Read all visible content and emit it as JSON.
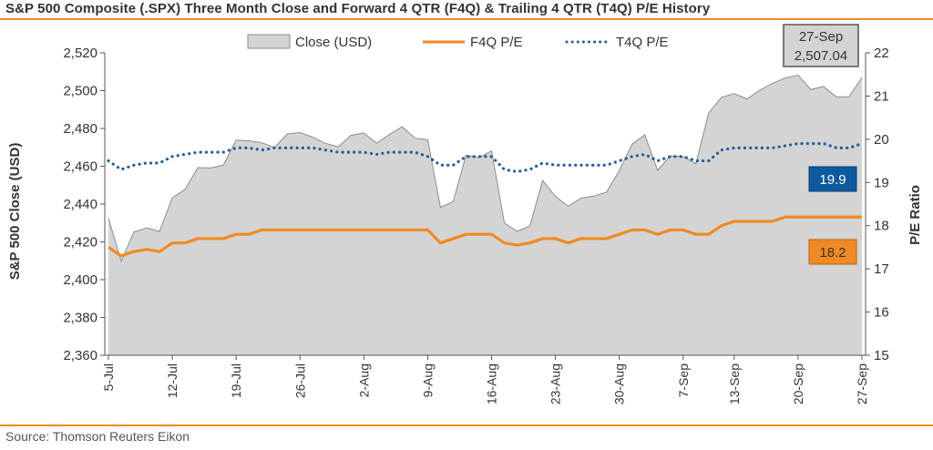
{
  "title": "S&P 500 Composite (.SPX) Three Month Close and Forward 4 QTR (F4Q) & Trailing 4 QTR (T4Q) P/E History",
  "source": "Source: Thomson Reuters Eikon",
  "colors": {
    "accent_orange": "#f08a24",
    "close_fill": "#d4d4d4",
    "close_stroke": "#8c8c8c",
    "f4q_line": "#f08a24",
    "t4q_line": "#1f5f9c",
    "t4q_badge": "#0f5a9e",
    "f4q_badge": "#f08a24"
  },
  "chart_data": {
    "type": "area",
    "title": "S&P 500 Composite (.SPX) Three Month Close and Forward 4 QTR (F4Q) & Trailing 4 QTR (T4Q) P/E History",
    "ylabel": "S&P 500 Close (USD)",
    "y2label": "P/E Ratio",
    "ylim": [
      2360,
      2520
    ],
    "y2lim": [
      15,
      22
    ],
    "yticks": [
      "2,360",
      "2,380",
      "2,400",
      "2,420",
      "2,440",
      "2,460",
      "2,480",
      "2,500",
      "2,520"
    ],
    "y2ticks": [
      "15",
      "16",
      "17",
      "18",
      "19",
      "20",
      "21",
      "22"
    ],
    "xticks": [
      "5-Jul",
      "12-Jul",
      "19-Jul",
      "26-Jul",
      "2-Aug",
      "9-Aug",
      "16-Aug",
      "23-Aug",
      "30-Aug",
      "7-Sep",
      "13-Sep",
      "20-Sep",
      "27-Sep"
    ],
    "legend": {
      "placement": "top-center",
      "entries": [
        "Close (USD)",
        "F4Q P/E",
        "T4Q P/E"
      ]
    },
    "grid": false,
    "x": [
      "5-Jul",
      "6-Jul",
      "7-Jul",
      "10-Jul",
      "11-Jul",
      "12-Jul",
      "13-Jul",
      "14-Jul",
      "17-Jul",
      "18-Jul",
      "19-Jul",
      "20-Jul",
      "21-Jul",
      "24-Jul",
      "25-Jul",
      "26-Jul",
      "27-Jul",
      "28-Jul",
      "31-Jul",
      "1-Aug",
      "2-Aug",
      "3-Aug",
      "4-Aug",
      "7-Aug",
      "8-Aug",
      "9-Aug",
      "10-Aug",
      "11-Aug",
      "14-Aug",
      "15-Aug",
      "16-Aug",
      "17-Aug",
      "18-Aug",
      "21-Aug",
      "22-Aug",
      "23-Aug",
      "24-Aug",
      "25-Aug",
      "28-Aug",
      "29-Aug",
      "30-Aug",
      "31-Aug",
      "1-Sep",
      "5-Sep",
      "6-Sep",
      "7-Sep",
      "8-Sep",
      "11-Sep",
      "12-Sep",
      "13-Sep",
      "14-Sep",
      "15-Sep",
      "18-Sep",
      "19-Sep",
      "20-Sep",
      "21-Sep",
      "22-Sep",
      "25-Sep",
      "26-Sep",
      "27-Sep"
    ],
    "series": [
      {
        "name": "Close (USD)",
        "axis": "left",
        "values": [
          2432.5,
          2409.8,
          2425.2,
          2427.4,
          2425.5,
          2443.3,
          2447.8,
          2459.3,
          2459.1,
          2460.6,
          2473.8,
          2473.5,
          2472.5,
          2469.9,
          2477.1,
          2477.8,
          2475.4,
          2472.1,
          2470.3,
          2476.4,
          2477.6,
          2472.2,
          2476.8,
          2480.9,
          2474.9,
          2474.0,
          2438.2,
          2441.3,
          2465.8,
          2464.6,
          2468.1,
          2430.0,
          2425.6,
          2428.4,
          2452.5,
          2444.0,
          2438.9,
          2443.1,
          2444.2,
          2446.3,
          2457.6,
          2471.7,
          2476.6,
          2457.9,
          2465.5,
          2465.1,
          2461.4,
          2488.1,
          2496.5,
          2498.4,
          2495.6,
          2500.2,
          2503.9,
          2506.7,
          2508.2,
          2500.6,
          2502.2,
          2496.7,
          2496.8,
          2507.0
        ]
      },
      {
        "name": "F4Q P/E",
        "axis": "right",
        "values": [
          17.5,
          17.3,
          17.4,
          17.45,
          17.4,
          17.6,
          17.6,
          17.7,
          17.7,
          17.7,
          17.8,
          17.8,
          17.9,
          17.9,
          17.9,
          17.9,
          17.9,
          17.9,
          17.9,
          17.9,
          17.9,
          17.9,
          17.9,
          17.9,
          17.9,
          17.9,
          17.6,
          17.7,
          17.8,
          17.8,
          17.8,
          17.6,
          17.55,
          17.6,
          17.7,
          17.7,
          17.6,
          17.7,
          17.7,
          17.7,
          17.8,
          17.9,
          17.9,
          17.8,
          17.9,
          17.9,
          17.8,
          17.8,
          18.0,
          18.1,
          18.1,
          18.1,
          18.1,
          18.2,
          18.2,
          18.2,
          18.2,
          18.2,
          18.2,
          18.2
        ]
      },
      {
        "name": "T4Q P/E",
        "axis": "right",
        "values": [
          19.5,
          19.3,
          19.4,
          19.45,
          19.45,
          19.6,
          19.65,
          19.7,
          19.7,
          19.7,
          19.8,
          19.8,
          19.75,
          19.8,
          19.8,
          19.8,
          19.8,
          19.75,
          19.7,
          19.7,
          19.7,
          19.65,
          19.7,
          19.7,
          19.7,
          19.6,
          19.4,
          19.4,
          19.6,
          19.6,
          19.6,
          19.3,
          19.25,
          19.3,
          19.45,
          19.4,
          19.4,
          19.4,
          19.4,
          19.4,
          19.5,
          19.6,
          19.65,
          19.5,
          19.6,
          19.6,
          19.5,
          19.5,
          19.75,
          19.8,
          19.8,
          19.8,
          19.8,
          19.85,
          19.9,
          19.9,
          19.9,
          19.8,
          19.8,
          19.9
        ]
      }
    ],
    "annotations": {
      "last_date": "27-Sep",
      "last_close": "2,507.04",
      "t4q_last": "19.9",
      "f4q_last": "18.2"
    }
  }
}
